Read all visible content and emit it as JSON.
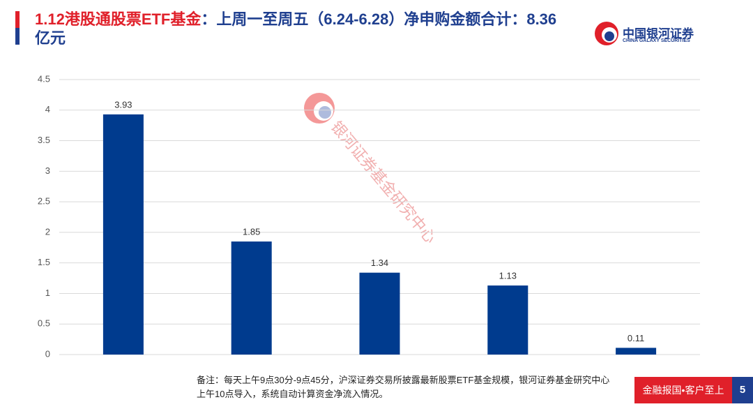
{
  "header": {
    "title_highlight": "1.12港股通股票ETF基金",
    "title_rest": "：上周一至周五（6.24-6.28）净申购金额合计：8.36亿元"
  },
  "logo": {
    "name": "中国银河证券",
    "english": "CHINA GALAXY SECURITIES"
  },
  "watermark": "银河证券基金研究中心",
  "chart_data": {
    "type": "bar",
    "categories": [
      null,
      null,
      null,
      null,
      null
    ],
    "values": [
      3.93,
      1.85,
      1.34,
      1.13,
      0.11
    ],
    "color": "#003b8e",
    "ylim": [
      0,
      4.5
    ],
    "yticks": [
      0,
      0.5,
      1,
      1.5,
      2,
      2.5,
      3,
      3.5,
      4,
      4.5
    ],
    "grid": true
  },
  "footnote": [
    "备注：每天上午9点30分-9点45分，沪深证券交易所披露最新股票ETF基金规模，银河证券基金研究中心",
    "上午10点导入，系统自动计算资金净流入情况。"
  ],
  "footer": {
    "slogan": "金融报国•客户至上",
    "page_number": "5"
  }
}
